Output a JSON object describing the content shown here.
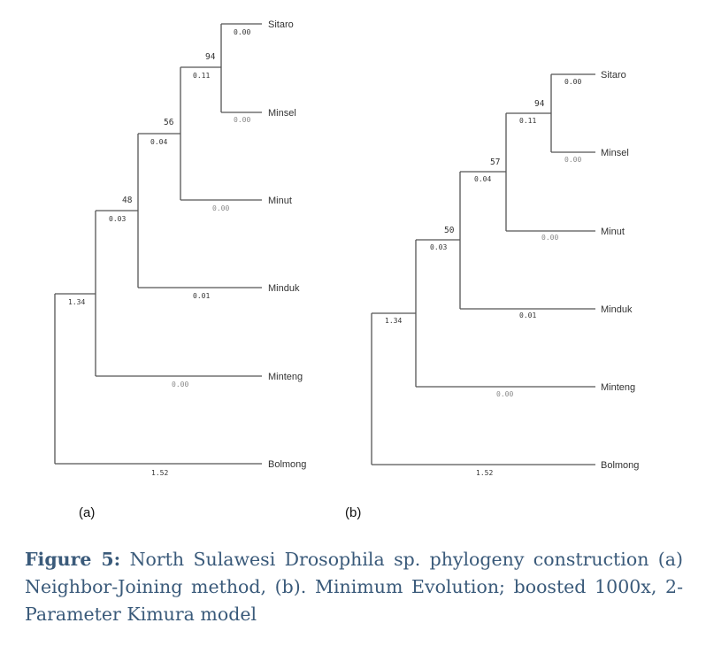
{
  "trees": [
    {
      "panel_label": "(a)",
      "leaves": [
        "Sitaro",
        "Minsel",
        "Minut",
        "Minduk",
        "Minteng",
        "Bolmong"
      ],
      "bootstrap": [
        "94",
        "56",
        "48"
      ],
      "lengths": {
        "sitaro": "0.00",
        "minsel": "0.00",
        "n94": "0.11",
        "minut": "0.00",
        "n56": "0.04",
        "minduk": "0.01",
        "n48": "0.03",
        "minteng": "0.00",
        "n_root_upper": "1.34",
        "bolmong": "1.52"
      }
    },
    {
      "panel_label": "(b)",
      "leaves": [
        "Sitaro",
        "Minsel",
        "Minut",
        "Minduk",
        "Minteng",
        "Bolmong"
      ],
      "bootstrap": [
        "94",
        "57",
        "50"
      ],
      "lengths": {
        "sitaro": "0.00",
        "minsel": "0.00",
        "n94": "0.11",
        "minut": "0.00",
        "n57": "0.04",
        "minduk": "0.01",
        "n50": "0.03",
        "minteng": "0.00",
        "n_root_upper": "1.34",
        "bolmong": "1.52"
      }
    }
  ],
  "caption": {
    "label": "Figure 5:",
    "text": " North Sulawesi Drosophila sp. phylogeny construction (a) Neighbor-Joining method, (b). Minimum Evolution; boosted 1000x, 2-Parameter Kimura model"
  }
}
